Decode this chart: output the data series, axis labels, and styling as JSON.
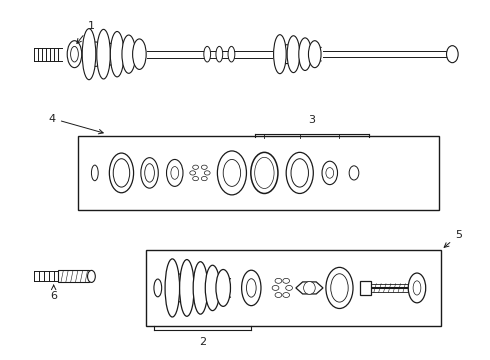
{
  "bg_color": "#ffffff",
  "line_color": "#1a1a1a",
  "label_color": "#222222",
  "fig_width": 4.9,
  "fig_height": 3.6,
  "dpi": 100
}
